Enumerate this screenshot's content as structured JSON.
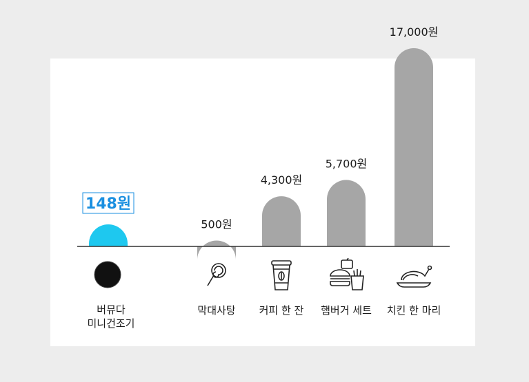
{
  "chart_data": {
    "type": "bar",
    "categories": [
      "버뮤다\n미니건조기",
      "막대사탕",
      "커피 한 잔",
      "햄버거 세트",
      "치킨 한 마리"
    ],
    "values": [
      148,
      500,
      4300,
      5700,
      17000
    ],
    "value_labels": [
      "148원",
      "500원",
      "4,300원",
      "5,700원",
      "17,000원"
    ],
    "ylim": [
      0,
      17000
    ],
    "grid": false,
    "highlight_index": 0,
    "colors": {
      "highlight": "#1ec8ef",
      "bar": "#a6a6a6",
      "highlight_text": "#1a8fe0",
      "text": "#1a1a1a"
    },
    "icons": [
      "product-dot-icon",
      "lollipop-icon",
      "coffee-cup-icon",
      "burger-set-icon",
      "roast-chicken-icon"
    ]
  }
}
